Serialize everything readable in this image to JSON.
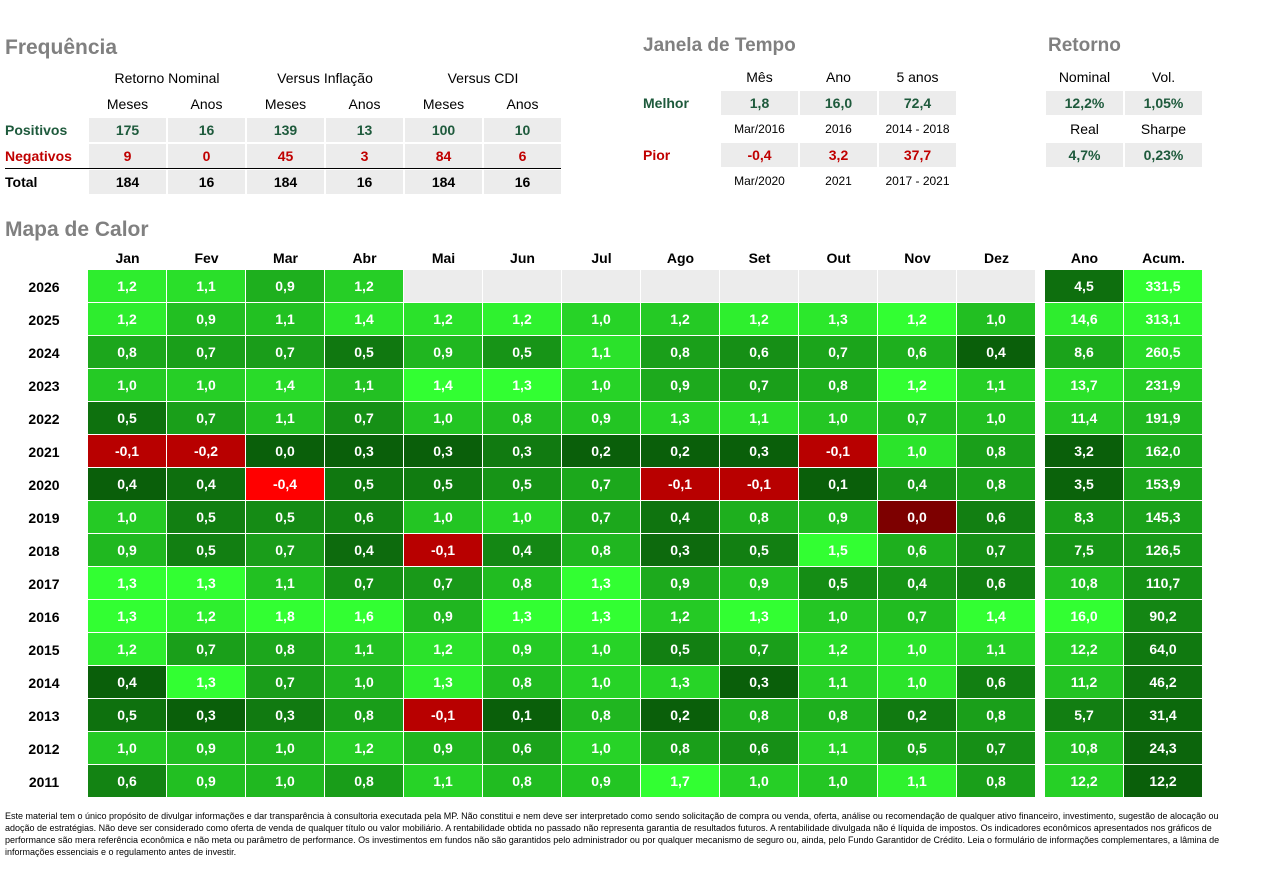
{
  "frequencia": {
    "title": "Frequência",
    "groups": [
      "Retorno Nominal",
      "Versus Inflação",
      "Versus CDI"
    ],
    "subheaders": [
      "Meses",
      "Anos",
      "Meses",
      "Anos",
      "Meses",
      "Anos"
    ],
    "rows": [
      {
        "label": "Positivos",
        "values": [
          "175",
          "16",
          "139",
          "13",
          "100",
          "10"
        ]
      },
      {
        "label": "Negativos",
        "values": [
          "9",
          "0",
          "45",
          "3",
          "84",
          "6"
        ]
      },
      {
        "label": "Total",
        "values": [
          "184",
          "16",
          "184",
          "16",
          "184",
          "16"
        ]
      }
    ]
  },
  "janela": {
    "title": "Janela de Tempo",
    "columns": [
      "Mês",
      "Ano",
      "5 anos"
    ],
    "rows": [
      {
        "label": "Melhor",
        "values": [
          "1,8",
          "16,0",
          "72,4"
        ],
        "periods": [
          "Mar/2016",
          "2016",
          "2014 - 2018"
        ]
      },
      {
        "label": "Pior",
        "values": [
          "-0,4",
          "3,2",
          "37,7"
        ],
        "periods": [
          "Mar/2020",
          "2021",
          "2017 - 2021"
        ]
      }
    ]
  },
  "retorno": {
    "title": "Retorno",
    "blocks": [
      {
        "headers": [
          "Nominal",
          "Vol."
        ],
        "values": [
          "12,2%",
          "1,05%"
        ]
      },
      {
        "headers": [
          "Real",
          "Sharpe"
        ],
        "values": [
          "4,7%",
          "0,23%"
        ]
      }
    ]
  },
  "heatmap": {
    "title": "Mapa de Calor",
    "months": [
      "Jan",
      "Fev",
      "Mar",
      "Abr",
      "Mai",
      "Jun",
      "Jul",
      "Ago",
      "Set",
      "Out",
      "Nov",
      "Dez"
    ],
    "summary_columns": [
      "Ano",
      "Acum."
    ],
    "rows": [
      {
        "year": "2026",
        "months": [
          "1,2",
          "1,1",
          "0,9",
          "1,2",
          null,
          null,
          null,
          null,
          null,
          null,
          null,
          null
        ],
        "summary": [
          "4,5",
          "331,5"
        ]
      },
      {
        "year": "2025",
        "months": [
          "1,2",
          "0,9",
          "1,1",
          "1,4",
          "1,2",
          "1,2",
          "1,0",
          "1,2",
          "1,2",
          "1,3",
          "1,2",
          "1,0"
        ],
        "summary": [
          "14,6",
          "313,1"
        ]
      },
      {
        "year": "2024",
        "months": [
          "0,8",
          "0,7",
          "0,7",
          "0,5",
          "0,9",
          "0,5",
          "1,1",
          "0,8",
          "0,6",
          "0,7",
          "0,6",
          "0,4"
        ],
        "summary": [
          "8,6",
          "260,5"
        ]
      },
      {
        "year": "2023",
        "months": [
          "1,0",
          "1,0",
          "1,4",
          "1,1",
          "1,4",
          "1,3",
          "1,0",
          "0,9",
          "0,7",
          "0,8",
          "1,2",
          "1,1"
        ],
        "summary": [
          "13,7",
          "231,9"
        ]
      },
      {
        "year": "2022",
        "months": [
          "0,5",
          "0,7",
          "1,1",
          "0,7",
          "1,0",
          "0,8",
          "0,9",
          "1,3",
          "1,1",
          "1,0",
          "0,7",
          "1,0"
        ],
        "summary": [
          "11,4",
          "191,9"
        ]
      },
      {
        "year": "2021",
        "months": [
          "-0,1",
          "-0,2",
          "0,0",
          "0,3",
          "0,3",
          "0,3",
          "0,2",
          "0,2",
          "0,3",
          "-0,1",
          "1,0",
          "0,8"
        ],
        "summary": [
          "3,2",
          "162,0"
        ]
      },
      {
        "year": "2020",
        "months": [
          "0,4",
          "0,4",
          "-0,4",
          "0,5",
          "0,5",
          "0,5",
          "0,7",
          "-0,1",
          "-0,1",
          "0,1",
          "0,4",
          "0,8"
        ],
        "summary": [
          "3,5",
          "153,9"
        ]
      },
      {
        "year": "2019",
        "months": [
          "1,0",
          "0,5",
          "0,5",
          "0,6",
          "1,0",
          "1,0",
          "0,7",
          "0,4",
          "0,8",
          "0,9",
          "0,0",
          "0,6"
        ],
        "summary": [
          "8,3",
          "145,3"
        ]
      },
      {
        "year": "2018",
        "months": [
          "0,9",
          "0,5",
          "0,7",
          "0,4",
          "-0,1",
          "0,4",
          "0,8",
          "0,3",
          "0,5",
          "1,5",
          "0,6",
          "0,7"
        ],
        "summary": [
          "7,5",
          "126,5"
        ]
      },
      {
        "year": "2017",
        "months": [
          "1,3",
          "1,3",
          "1,1",
          "0,7",
          "0,7",
          "0,8",
          "1,3",
          "0,9",
          "0,9",
          "0,5",
          "0,4",
          "0,6"
        ],
        "summary": [
          "10,8",
          "110,7"
        ]
      },
      {
        "year": "2016",
        "months": [
          "1,3",
          "1,2",
          "1,8",
          "1,6",
          "0,9",
          "1,3",
          "1,3",
          "1,2",
          "1,3",
          "1,0",
          "0,7",
          "1,4"
        ],
        "summary": [
          "16,0",
          "90,2"
        ]
      },
      {
        "year": "2015",
        "months": [
          "1,2",
          "0,7",
          "0,8",
          "1,1",
          "1,2",
          "0,9",
          "1,0",
          "0,5",
          "0,7",
          "1,2",
          "1,0",
          "1,1"
        ],
        "summary": [
          "12,2",
          "64,0"
        ]
      },
      {
        "year": "2014",
        "months": [
          "0,4",
          "1,3",
          "0,7",
          "1,0",
          "1,3",
          "0,8",
          "1,0",
          "1,3",
          "0,3",
          "1,1",
          "1,0",
          "0,6"
        ],
        "summary": [
          "11,2",
          "46,2"
        ]
      },
      {
        "year": "2013",
        "months": [
          "0,5",
          "0,3",
          "0,3",
          "0,8",
          "-0,1",
          "0,1",
          "0,8",
          "0,2",
          "0,8",
          "0,8",
          "0,2",
          "0,8"
        ],
        "summary": [
          "5,7",
          "31,4"
        ]
      },
      {
        "year": "2012",
        "months": [
          "1,0",
          "0,9",
          "1,0",
          "1,2",
          "0,9",
          "0,6",
          "1,0",
          "0,8",
          "0,6",
          "1,1",
          "0,5",
          "0,7"
        ],
        "summary": [
          "10,8",
          "24,3"
        ]
      },
      {
        "year": "2011",
        "months": [
          "0,6",
          "0,9",
          "1,0",
          "0,8",
          "1,1",
          "0,8",
          "0,9",
          "1,7",
          "1,0",
          "1,0",
          "1,1",
          "0,8"
        ],
        "summary": [
          "12,2",
          "12,2"
        ]
      }
    ]
  },
  "disclaimer": "Este material tem o único propósito de divulgar informações e dar transparência à consultoria executada pela MP. Não constitui e nem deve ser interpretado como sendo solicitação de compra ou venda, oferta, análise ou recomendação de qualquer ativo financeiro, investimento, sugestão de alocação ou adoção de estratégias. Não deve ser considerado como oferta de venda de qualquer título ou valor mobiliário. A rentabilidade obtida no passado não representa garantia de resultados futuros. A rentabilidade divulgada não é líquida de impostos. Os indicadores econômicos apresentados nos gráficos de performance são mera referência econômica e não meta ou parâmetro de performance. Os investimentos em fundos não são garantidos pelo administrador ou por qualquer mecanismo de seguro ou, ainda, pelo Fundo Garantidor de Crédito. Leia o formulário de informações complementares, a lâmina de informações essenciais e o regulamento antes de investir."
}
